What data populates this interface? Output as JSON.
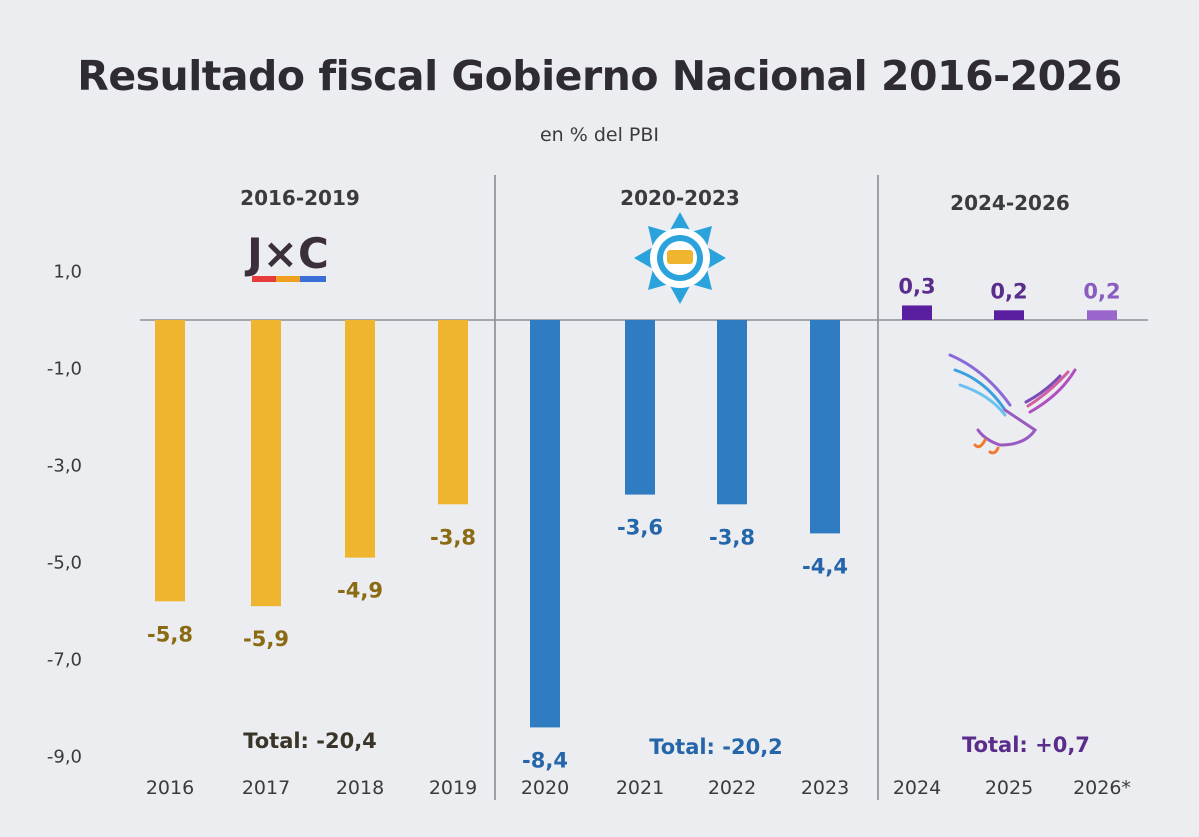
{
  "chart_data": {
    "type": "bar",
    "title": "Resultado fiscal Gobierno Nacional 2016-2026",
    "subtitle": "en % del PBI",
    "ylim": [
      -9,
      1
    ],
    "yticks": [
      1,
      -1,
      -3,
      -5,
      -7,
      -9
    ],
    "ytick_labels": [
      "1,0",
      "-1,0",
      "-3,0",
      "-5,0",
      "-7,0",
      "-9,0"
    ],
    "categories": [
      "2016",
      "2017",
      "2018",
      "2019",
      "2020",
      "2021",
      "2022",
      "2023",
      "2024",
      "2025",
      "2026*"
    ],
    "values": [
      -5.8,
      -5.9,
      -4.9,
      -3.8,
      -8.4,
      -3.6,
      -3.8,
      -4.4,
      0.3,
      0.2,
      0.2
    ],
    "value_labels": [
      "-5,8",
      "-5,9",
      "-4,9",
      "-3,8",
      "-8,4",
      "-3,6",
      "-3,8",
      "-4,4",
      "0,3",
      "0,2",
      "0,2"
    ],
    "periods": [
      {
        "label": "2016-2019",
        "logo_text": "J×C",
        "total": "Total: -20,4",
        "color": "#efb52f",
        "label_color": "#8a6a12"
      },
      {
        "label": "2020-2023",
        "total": "Total: -20,2",
        "color": "#2f7cc3",
        "label_color": "#2566aa"
      },
      {
        "label": "2024-2026",
        "total": "Total: +0,7",
        "color": "#6a2fa0",
        "label_color": "#5a2d8c"
      }
    ],
    "bar_colors": [
      "#efb52f",
      "#efb52f",
      "#efb52f",
      "#efb52f",
      "#2f7cc3",
      "#2f7cc3",
      "#2f7cc3",
      "#2f7cc3",
      "#5a1fa0",
      "#5a1fa0",
      "#9a66cc"
    ],
    "label_colors": [
      "#8a6a12",
      "#8a6a12",
      "#8a6a12",
      "#8a6a12",
      "#2566aa",
      "#2566aa",
      "#2566aa",
      "#2566aa",
      "#5a2d8c",
      "#5a2d8c",
      "#8a5cc0"
    ]
  }
}
